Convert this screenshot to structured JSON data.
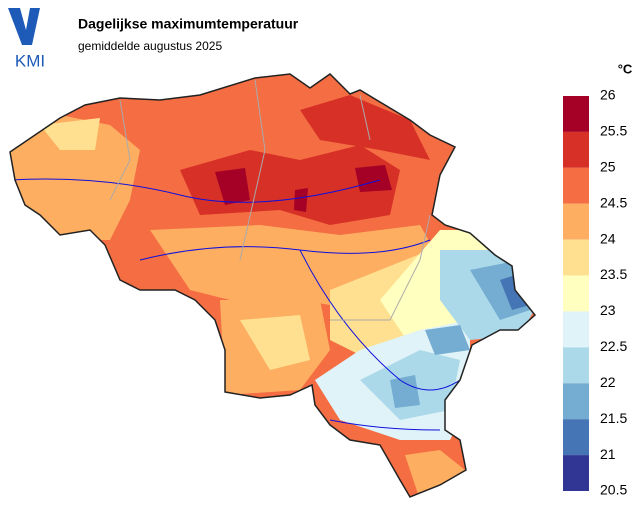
{
  "header": {
    "logo": "KMI",
    "title": "Dagelijkse maximumtemperatuur",
    "subtitle": "gemiddelde augustus 2025"
  },
  "legend": {
    "unit": "°C",
    "ticks": [
      26,
      25.5,
      25,
      24.5,
      24,
      23.5,
      23,
      22.5,
      22,
      21.5,
      21,
      20.5
    ],
    "colors": [
      "#a50026",
      "#d73027",
      "#f46d43",
      "#fdae61",
      "#fee090",
      "#ffffbf",
      "#e0f3f8",
      "#abd9e9",
      "#74add1",
      "#4575b4",
      "#313695"
    ]
  }
}
